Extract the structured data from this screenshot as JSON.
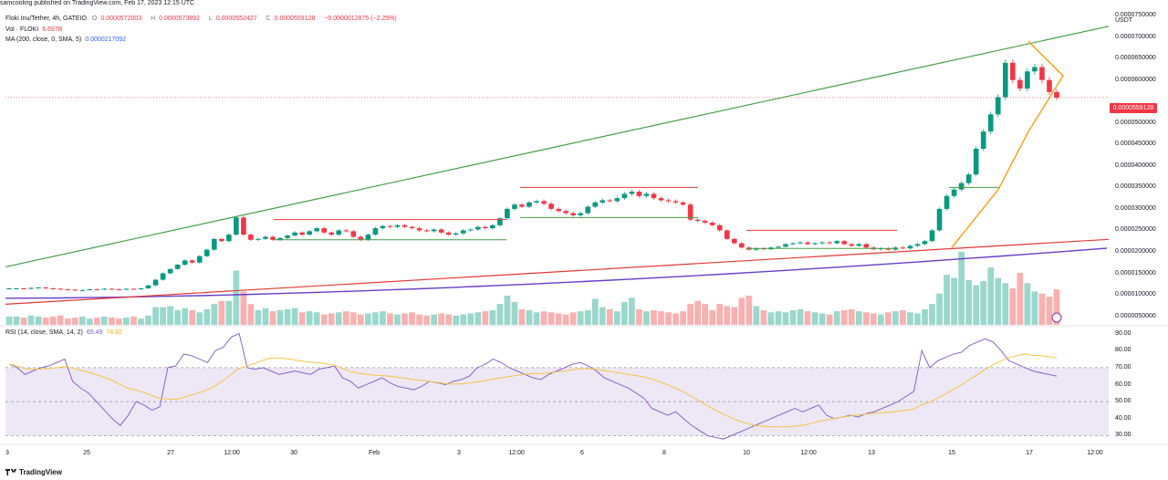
{
  "header": {
    "published_text": "samcooling published on TradingView.com, Feb 17, 2023 12:15 UTC"
  },
  "legend": {
    "symbol": "Floki Inu/Tether, 4h, GATEIO",
    "open_label": "O",
    "open": "0.0000572003",
    "high_label": "H",
    "high": "0.0000573892",
    "low_label": "L",
    "low": "0.0000552427",
    "close_label": "C",
    "close": "0.0000559128",
    "change": "−0.0000012875 (−2.25%)",
    "vol_label": "Vol · FLOKI",
    "vol_value": "6.697B",
    "ma_label": "MA (200, close, 0, SMA, 5)",
    "ma_value": "0.0000217092",
    "rsi_label": "RSI (14, close, SMA, 14, 2)",
    "rsi_value": "65.49",
    "rsi_ma_value": "74.92"
  },
  "price_axis": {
    "currency": "USDT",
    "ticks": [
      "0.0000750000",
      "0.0000700000",
      "0.0000650000",
      "0.0000600000",
      "0.0000500000",
      "0.0000450000",
      "0.0000400000",
      "0.0000350000",
      "0.0000300000",
      "0.0000250000",
      "0.0000200000",
      "0.0000150000",
      "0.0000100000",
      "0.0000050000"
    ],
    "last_price": "0.0000559128"
  },
  "rsi_axis": {
    "ticks": [
      "90.00",
      "80.00",
      "70.00",
      "60.00",
      "50.00",
      "40.00",
      "30.00"
    ]
  },
  "time_axis": {
    "ticks": [
      "3",
      "25",
      "27",
      "12:00",
      "30",
      "Feb",
      "3",
      "12:00",
      "6",
      "8",
      "10",
      "12:00",
      "13",
      "15",
      "17",
      "12:00"
    ]
  },
  "footer": {
    "brand": "TradingView"
  },
  "colors": {
    "up": "#089981",
    "down": "#f23645",
    "ma": "#6a3fc7",
    "red_line": "#e53935",
    "green_line": "#43a047",
    "triangle": "#ff9800",
    "rsi_line": "#7e57c2",
    "rsi_ma": "#f5c542",
    "rsi_band": "#ede7f6"
  },
  "chart_data": {
    "type": "candlestick",
    "symbol": "FLOKI/USDT",
    "interval": "4h",
    "exchange": "GATEIO",
    "x_labels": [
      "3",
      "25",
      "27",
      "12:00",
      "30",
      "Feb",
      "3",
      "12:00",
      "6",
      "8",
      "10",
      "12:00",
      "13",
      "15",
      "17",
      "12:00"
    ],
    "ylim": [
      3e-06,
      7.65e-05
    ],
    "close_series": [
      1.15e-05,
      1.15e-05,
      1.14e-05,
      1.16e-05,
      1.17e-05,
      1.15e-05,
      1.14e-05,
      1.13e-05,
      1.12e-05,
      1.1e-05,
      1.11e-05,
      1.13e-05,
      1.12e-05,
      1.14e-05,
      1.13e-05,
      1.12e-05,
      1.14e-05,
      1.13e-05,
      1.15e-05,
      1.22e-05,
      1.35e-05,
      1.5e-05,
      1.6e-05,
      1.7e-05,
      1.8e-05,
      1.75e-05,
      1.9e-05,
      2.05e-05,
      2.3e-05,
      2.25e-05,
      2.4e-05,
      2.8e-05,
      2.4e-05,
      2.28e-05,
      2.3e-05,
      2.35e-05,
      2.28e-05,
      2.32e-05,
      2.38e-05,
      2.45e-05,
      2.4e-05,
      2.48e-05,
      2.55e-05,
      2.45e-05,
      2.4e-05,
      2.5e-05,
      2.48e-05,
      2.35e-05,
      2.28e-05,
      2.4e-05,
      2.55e-05,
      2.6e-05,
      2.58e-05,
      2.62e-05,
      2.58e-05,
      2.55e-05,
      2.5e-05,
      2.48e-05,
      2.52e-05,
      2.45e-05,
      2.4e-05,
      2.43e-05,
      2.5e-05,
      2.52e-05,
      2.58e-05,
      2.55e-05,
      2.62e-05,
      2.78e-05,
      3e-05,
      3.1e-05,
      3.05e-05,
      3.15e-05,
      3.18e-05,
      3.12e-05,
      3e-05,
      2.95e-05,
      2.9e-05,
      2.85e-05,
      2.9e-05,
      3.05e-05,
      3.15e-05,
      3.2e-05,
      3.18e-05,
      3.25e-05,
      3.35e-05,
      3.4e-05,
      3.3e-05,
      3.35e-05,
      3.25e-05,
      3.2e-05,
      3.18e-05,
      3.15e-05,
      3.1e-05,
      2.75e-05,
      2.72e-05,
      2.68e-05,
      2.62e-05,
      2.5e-05,
      2.3e-05,
      2.2e-05,
      2.1e-05,
      2.05e-05,
      2.08e-05,
      2.06e-05,
      2.1e-05,
      2.12e-05,
      2.18e-05,
      2.2e-05,
      2.22e-05,
      2.18e-05,
      2.2e-05,
      2.22e-05,
      2.2e-05,
      2.25e-05,
      2.18e-05,
      2.14e-05,
      2.18e-05,
      2.1e-05,
      2.06e-05,
      2.08e-05,
      2.05e-05,
      2.1e-05,
      2.08e-05,
      2.14e-05,
      2.18e-05,
      2.25e-05,
      2.5e-05,
      3e-05,
      3.3e-05,
      3.45e-05,
      3.6e-05,
      3.8e-05,
      4.4e-05,
      4.8e-05,
      5.2e-05,
      5.6e-05,
      6.4e-05,
      6e-05,
      5.8e-05,
      6.2e-05,
      6.3e-05,
      6e-05,
      5.72e-05,
      5.59e-05
    ],
    "volume_series": [
      0.8,
      0.8,
      0.7,
      0.9,
      0.8,
      0.7,
      0.8,
      0.9,
      0.6,
      0.7,
      0.8,
      0.6,
      0.7,
      0.8,
      0.7,
      0.6,
      0.7,
      0.8,
      0.6,
      0.9,
      1.7,
      1.7,
      1.8,
      1.4,
      1.6,
      1.4,
      1.2,
      1.5,
      2.0,
      2.3,
      2.3,
      5.2,
      3.2,
      2.0,
      1.4,
      1.6,
      1.3,
      1.4,
      1.5,
      1.6,
      1.2,
      1.3,
      1.2,
      1.0,
      1.1,
      1.2,
      1.3,
      1.2,
      1.0,
      1.1,
      1.2,
      1.3,
      1.1,
      1.0,
      1.1,
      1.2,
      1.0,
      0.9,
      1.0,
      1.1,
      1.0,
      0.9,
      1.0,
      1.1,
      1.2,
      1.3,
      1.4,
      2.0,
      2.8,
      2.2,
      1.5,
      1.4,
      1.2,
      1.3,
      1.2,
      1.1,
      1.0,
      1.2,
      1.3,
      1.4,
      2.5,
      1.7,
      1.5,
      1.3,
      2.2,
      2.6,
      1.5,
      1.3,
      1.4,
      1.3,
      1.2,
      1.1,
      1.3,
      2.0,
      2.3,
      2.0,
      1.4,
      2.0,
      1.8,
      1.7,
      2.6,
      2.8,
      1.8,
      1.4,
      1.2,
      1.3,
      1.2,
      1.4,
      1.5,
      1.3,
      1.2,
      1.1,
      1.0,
      1.3,
      1.4,
      1.5,
      1.3,
      1.2,
      1.1,
      1.0,
      1.2,
      1.3,
      1.4,
      1.2,
      1.1,
      1.5,
      2.0,
      3.0,
      4.8,
      4.5,
      7.0,
      4.3,
      3.8,
      4.2,
      5.5,
      4.5,
      4.0,
      3.5,
      5.0,
      4.0,
      3.2,
      3.0,
      2.7,
      3.4
    ],
    "volume_unit": "relative",
    "ma200": {
      "name": "MA (200, close, 0, SMA, 5)",
      "last": 2.17092e-05
    },
    "rsi": {
      "name": "RSI (14, close, SMA, 14, 2)",
      "last": 65.49,
      "ma_last": 74.92,
      "ylim": [
        27,
        93
      ],
      "band": [
        30,
        70
      ],
      "mid": 50,
      "values": [
        72,
        70,
        66,
        68,
        70,
        71,
        73,
        75,
        62,
        58,
        55,
        50,
        45,
        40,
        36,
        42,
        50,
        48,
        45,
        47,
        70,
        71,
        78,
        77,
        75,
        73,
        80,
        82,
        88,
        90,
        70,
        69,
        70,
        68,
        66,
        67,
        68,
        67,
        66,
        69,
        70,
        71,
        64,
        62,
        58,
        60,
        62,
        64,
        61,
        59,
        58,
        57,
        59,
        62,
        61,
        60,
        62,
        63,
        65,
        70,
        72,
        75,
        73,
        70,
        68,
        66,
        64,
        63,
        66,
        68,
        70,
        72,
        73,
        71,
        68,
        64,
        62,
        60,
        58,
        55,
        52,
        46,
        44,
        42,
        44,
        40,
        36,
        33,
        30,
        29,
        28,
        30,
        32,
        34,
        36,
        38,
        40,
        42,
        44,
        46,
        44,
        46,
        48,
        42,
        40,
        41,
        42,
        41,
        43,
        44,
        46,
        48,
        50,
        53,
        56,
        80,
        70,
        74,
        76,
        78,
        79,
        83,
        85,
        87,
        85,
        80,
        74,
        72,
        70,
        68,
        67,
        66,
        65
      ]
    }
  }
}
